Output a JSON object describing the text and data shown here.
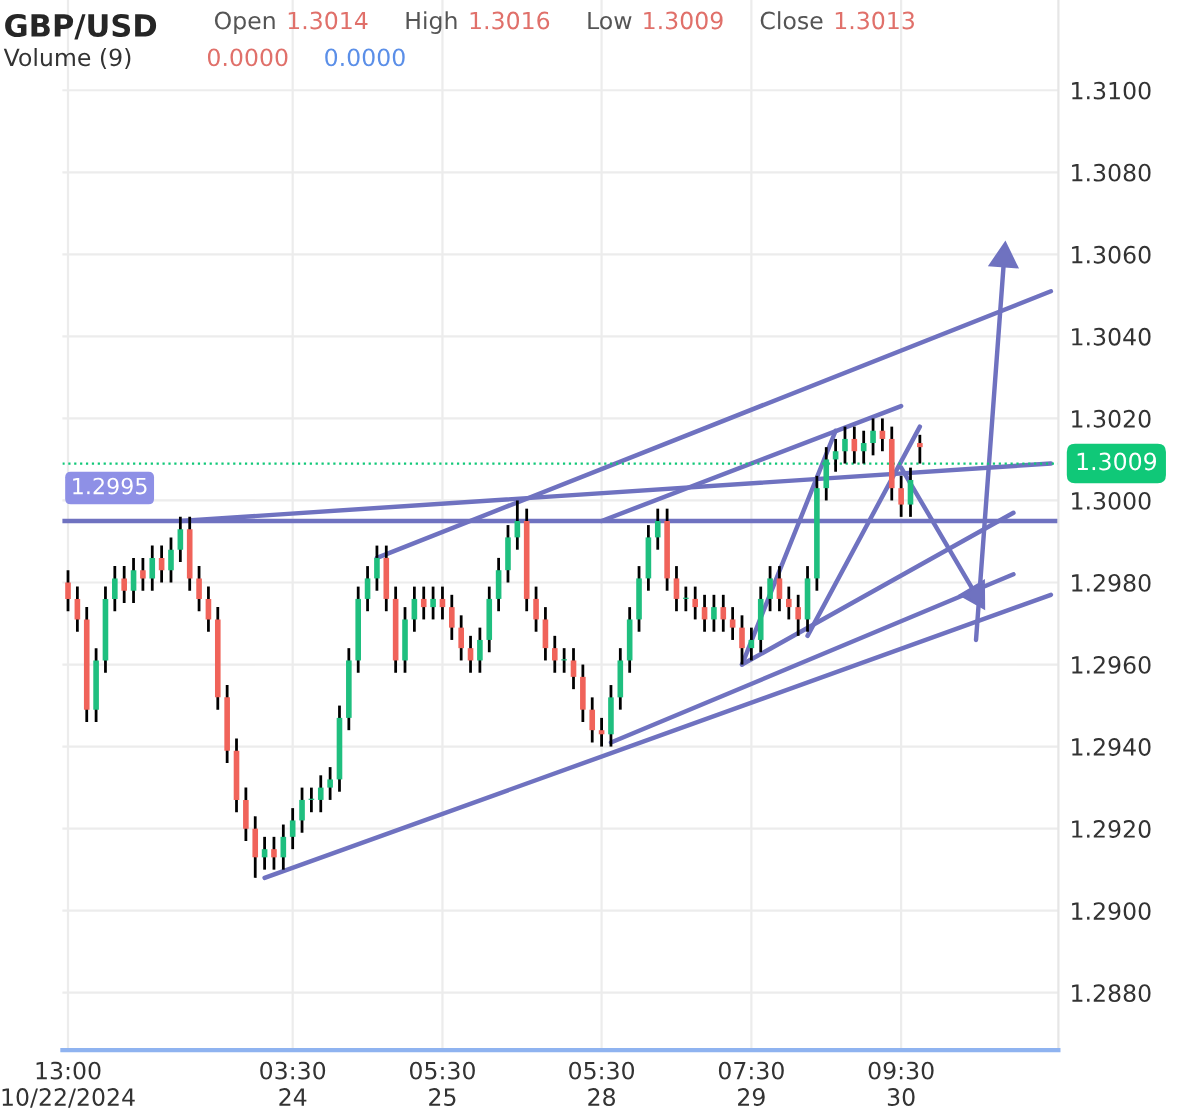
{
  "chart_data": {
    "type": "candlestick",
    "title": "GBP/USD",
    "annotations": [
      "Open",
      "1.3014",
      "High",
      "1.3016",
      "Low",
      "1.3009",
      "Close",
      "1.3013",
      "Volume (9)",
      "0.0000",
      "0.0000"
    ],
    "categories": [
      "13:00\n10/22/2024",
      null,
      null,
      null,
      null,
      null,
      null,
      null,
      null,
      null,
      null,
      null,
      null,
      null,
      null,
      null,
      null,
      null,
      null,
      null,
      null,
      null,
      null,
      null,
      "03:30\n24",
      null,
      null,
      null,
      null,
      null,
      null,
      null,
      null,
      null,
      null,
      null,
      null,
      null,
      null,
      null,
      "05:30\n25",
      null,
      null,
      null,
      null,
      null,
      null,
      null,
      null,
      null,
      null,
      null,
      null,
      null,
      null,
      null,
      null,
      "05:30\n28",
      null,
      null,
      null,
      null,
      null,
      null,
      null,
      null,
      null,
      null,
      null,
      null,
      null,
      null,
      null,
      "07:30\n29",
      null,
      null,
      null,
      null,
      null,
      null,
      null,
      null,
      null,
      null,
      null,
      null,
      null,
      null,
      null,
      "09:30\n30",
      null,
      null,
      null,
      null,
      null,
      null,
      null,
      null,
      null,
      null,
      null,
      null,
      null,
      null,
      null,
      null
    ],
    "ohlc": [
      [
        1.298,
        1.2983,
        1.2973,
        1.2976
      ],
      [
        1.2976,
        1.2979,
        1.2968,
        1.2971
      ],
      [
        1.2971,
        1.2974,
        1.2946,
        1.2949
      ],
      [
        1.2949,
        1.2964,
        1.2946,
        1.2961
      ],
      [
        1.2961,
        1.2979,
        1.2958,
        1.2976
      ],
      [
        1.2976,
        1.2984,
        1.2973,
        1.2981
      ],
      [
        1.2981,
        1.2984,
        1.2975,
        1.2978
      ],
      [
        1.2978,
        1.2986,
        1.2975,
        1.2983
      ],
      [
        1.2983,
        1.2986,
        1.2978,
        1.2981
      ],
      [
        1.2981,
        1.2989,
        1.2978,
        1.2986
      ],
      [
        1.2986,
        1.2989,
        1.298,
        1.2983
      ],
      [
        1.2983,
        1.2991,
        1.298,
        1.2988
      ],
      [
        1.2988,
        1.2996,
        1.2985,
        1.2993
      ],
      [
        1.2993,
        1.2996,
        1.2978,
        1.2981
      ],
      [
        1.2981,
        1.2984,
        1.2973,
        1.2976
      ],
      [
        1.2976,
        1.2979,
        1.2968,
        1.2971
      ],
      [
        1.2971,
        1.2974,
        1.2949,
        1.2952
      ],
      [
        1.2952,
        1.2955,
        1.2936,
        1.2939
      ],
      [
        1.2939,
        1.2942,
        1.2924,
        1.2927
      ],
      [
        1.2927,
        1.293,
        1.2917,
        1.292
      ],
      [
        1.292,
        1.2923,
        1.2908,
        1.2913
      ],
      [
        1.2913,
        1.2918,
        1.291,
        1.2915
      ],
      [
        1.2915,
        1.2918,
        1.291,
        1.2913
      ],
      [
        1.2913,
        1.2921,
        1.291,
        1.2918
      ],
      [
        1.2918,
        1.2925,
        1.2915,
        1.2922
      ],
      [
        1.2922,
        1.293,
        1.2919,
        1.2927
      ],
      [
        1.2927,
        1.293,
        1.2924,
        1.2927
      ],
      [
        1.2927,
        1.2933,
        1.2924,
        1.293
      ],
      [
        1.293,
        1.2935,
        1.2927,
        1.2932
      ],
      [
        1.2932,
        1.295,
        1.2929,
        1.2947
      ],
      [
        1.2947,
        1.2964,
        1.2944,
        1.2961
      ],
      [
        1.2961,
        1.2979,
        1.2958,
        1.2976
      ],
      [
        1.2976,
        1.2984,
        1.2973,
        1.2981
      ],
      [
        1.2981,
        1.2989,
        1.2978,
        1.2986
      ],
      [
        1.2986,
        1.2989,
        1.2973,
        1.2976
      ],
      [
        1.2976,
        1.2979,
        1.2958,
        1.2961
      ],
      [
        1.2961,
        1.2974,
        1.2958,
        1.2971
      ],
      [
        1.2971,
        1.2979,
        1.2968,
        1.2976
      ],
      [
        1.2976,
        1.2979,
        1.2971,
        1.2974
      ],
      [
        1.2974,
        1.2979,
        1.2971,
        1.2976
      ],
      [
        1.2976,
        1.2979,
        1.2971,
        1.2974
      ],
      [
        1.2974,
        1.2977,
        1.2966,
        1.2969
      ],
      [
        1.2969,
        1.2972,
        1.2961,
        1.2964
      ],
      [
        1.2964,
        1.2967,
        1.2958,
        1.2961
      ],
      [
        1.2961,
        1.2969,
        1.2958,
        1.2966
      ],
      [
        1.2966,
        1.2979,
        1.2963,
        1.2976
      ],
      [
        1.2976,
        1.2986,
        1.2973,
        1.2983
      ],
      [
        1.2983,
        1.2994,
        1.298,
        1.2991
      ],
      [
        1.2991,
        1.3,
        1.2988,
        1.2995
      ],
      [
        1.2995,
        1.2998,
        1.2973,
        1.2976
      ],
      [
        1.2976,
        1.2979,
        1.2968,
        1.2971
      ],
      [
        1.2971,
        1.2974,
        1.2961,
        1.2964
      ],
      [
        1.2964,
        1.2967,
        1.2958,
        1.2961
      ],
      [
        1.2961,
        1.2964,
        1.2958,
        1.2961
      ],
      [
        1.2961,
        1.2964,
        1.2954,
        1.2957
      ],
      [
        1.2957,
        1.296,
        1.2946,
        1.2949
      ],
      [
        1.2949,
        1.2952,
        1.2941,
        1.2944
      ],
      [
        1.2944,
        1.2947,
        1.294,
        1.2943
      ],
      [
        1.2943,
        1.2955,
        1.294,
        1.2952
      ],
      [
        1.2952,
        1.2964,
        1.2949,
        1.2961
      ],
      [
        1.2961,
        1.2974,
        1.2958,
        1.2971
      ],
      [
        1.2971,
        1.2984,
        1.2968,
        1.2981
      ],
      [
        1.2981,
        1.2994,
        1.2978,
        1.2991
      ],
      [
        1.2991,
        1.2998,
        1.2988,
        1.2995
      ],
      [
        1.2995,
        1.2998,
        1.2978,
        1.2981
      ],
      [
        1.2981,
        1.2984,
        1.2973,
        1.2976
      ],
      [
        1.2976,
        1.2979,
        1.2973,
        1.2976
      ],
      [
        1.2976,
        1.2979,
        1.2971,
        1.2974
      ],
      [
        1.2974,
        1.2977,
        1.2968,
        1.2971
      ],
      [
        1.2971,
        1.2977,
        1.2968,
        1.2974
      ],
      [
        1.2974,
        1.2977,
        1.2968,
        1.2971
      ],
      [
        1.2971,
        1.2974,
        1.2966,
        1.2969
      ],
      [
        1.2969,
        1.2972,
        1.296,
        1.2964
      ],
      [
        1.2964,
        1.2969,
        1.2961,
        1.2966
      ],
      [
        1.2966,
        1.2979,
        1.2963,
        1.2976
      ],
      [
        1.2976,
        1.2984,
        1.2973,
        1.2981
      ],
      [
        1.2981,
        1.2984,
        1.2973,
        1.2976
      ],
      [
        1.2976,
        1.2979,
        1.2971,
        1.2974
      ],
      [
        1.2974,
        1.2977,
        1.2967,
        1.2971
      ],
      [
        1.2971,
        1.2984,
        1.2968,
        1.2981
      ],
      [
        1.2981,
        1.3006,
        1.2978,
        1.3003
      ],
      [
        1.3003,
        1.3013,
        1.3,
        1.301
      ],
      [
        1.301,
        1.3015,
        1.3007,
        1.3012
      ],
      [
        1.3012,
        1.3018,
        1.3009,
        1.3015
      ],
      [
        1.3015,
        1.3018,
        1.3009,
        1.3012
      ],
      [
        1.3012,
        1.3017,
        1.3009,
        1.3014
      ],
      [
        1.3014,
        1.302,
        1.3011,
        1.3017
      ],
      [
        1.3017,
        1.302,
        1.3012,
        1.3015
      ],
      [
        1.3015,
        1.3018,
        1.3,
        1.3003
      ],
      [
        1.3003,
        1.3006,
        1.2996,
        1.2999
      ],
      [
        1.2999,
        1.3008,
        1.2996,
        1.3005
      ],
      [
        1.3014,
        1.3016,
        1.3009,
        1.3013
      ],
      null,
      null,
      null,
      null,
      null,
      null,
      null,
      null,
      null,
      null,
      null,
      null,
      null,
      null
    ],
    "series": [
      {
        "type": "line",
        "color": "#6f72c0",
        "values": [
          null,
          null,
          null,
          null,
          null,
          null,
          null,
          null,
          null,
          null,
          null,
          null,
          null,
          null,
          null,
          null,
          null,
          null,
          null,
          null,
          null,
          1.2908,
          null,
          null,
          null,
          null,
          null,
          null,
          null,
          null,
          null,
          null,
          null,
          null,
          null,
          null,
          null,
          null,
          null,
          null,
          null,
          null,
          null,
          null,
          null,
          null,
          null,
          null,
          null,
          null,
          null,
          null,
          null,
          null,
          null,
          null,
          null,
          null,
          null,
          null,
          null,
          null,
          null,
          null,
          null,
          null,
          null,
          null,
          null,
          null,
          null,
          null,
          null,
          null,
          null,
          null,
          null,
          null,
          null,
          null,
          null,
          null,
          null,
          null,
          null,
          null,
          null,
          null,
          null,
          null,
          null,
          null,
          null,
          null,
          null,
          null,
          null,
          null,
          null,
          null,
          null,
          null,
          null,
          null,
          null,
          1.2977
        ]
      },
      {
        "type": "line",
        "color": "#6f72c0",
        "values": [
          null,
          null,
          null,
          null,
          null,
          null,
          null,
          null,
          null,
          null,
          null,
          null,
          null,
          null,
          null,
          null,
          null,
          null,
          null,
          null,
          null,
          null,
          null,
          null,
          null,
          null,
          null,
          null,
          null,
          null,
          null,
          null,
          null,
          null,
          null,
          null,
          null,
          null,
          null,
          null,
          null,
          null,
          null,
          null,
          null,
          null,
          null,
          null,
          null,
          null,
          null,
          null,
          null,
          null,
          null,
          null,
          null,
          null,
          1.2941,
          null,
          null,
          null,
          null,
          null,
          null,
          null,
          null,
          null,
          null,
          null,
          null,
          null,
          null,
          null,
          null,
          null,
          null,
          null,
          null,
          null,
          null,
          null,
          null,
          null,
          null,
          null,
          null,
          null,
          null,
          null,
          null,
          null,
          null,
          null,
          null,
          null,
          null,
          null,
          null,
          null,
          null,
          1.2982,
          null,
          null,
          null,
          null
        ]
      },
      {
        "type": "line",
        "color": "#6f72c0",
        "values": [
          null,
          null,
          null,
          null,
          null,
          null,
          null,
          null,
          null,
          null,
          null,
          null,
          null,
          null,
          null,
          null,
          null,
          null,
          null,
          null,
          null,
          null,
          null,
          null,
          null,
          null,
          null,
          null,
          null,
          null,
          null,
          null,
          null,
          null,
          null,
          null,
          null,
          null,
          null,
          null,
          null,
          null,
          null,
          null,
          null,
          null,
          null,
          null,
          null,
          null,
          null,
          null,
          null,
          null,
          null,
          null,
          null,
          null,
          null,
          null,
          null,
          null,
          null,
          null,
          null,
          null,
          null,
          null,
          null,
          null,
          null,
          null,
          1.296,
          null,
          null,
          null,
          null,
          null,
          null,
          null,
          null,
          null,
          null,
          null,
          null,
          null,
          null,
          null,
          null,
          null,
          null,
          null,
          null,
          null,
          null,
          null,
          null,
          null,
          null,
          null,
          null,
          1.2997,
          null,
          null,
          null,
          null
        ]
      },
      {
        "type": "line",
        "color": "#6f72c0",
        "values": [
          null,
          null,
          null,
          null,
          null,
          null,
          null,
          null,
          null,
          null,
          null,
          null,
          1.2995,
          null,
          null,
          null,
          null,
          null,
          null,
          null,
          null,
          null,
          null,
          null,
          null,
          null,
          null,
          null,
          null,
          null,
          null,
          null,
          null,
          null,
          null,
          null,
          null,
          null,
          null,
          null,
          null,
          null,
          null,
          null,
          null,
          null,
          null,
          null,
          null,
          null,
          null,
          null,
          null,
          null,
          null,
          null,
          null,
          null,
          null,
          null,
          null,
          null,
          null,
          null,
          null,
          null,
          null,
          null,
          null,
          null,
          null,
          null,
          null,
          null,
          null,
          null,
          null,
          null,
          null,
          null,
          null,
          null,
          null,
          null,
          null,
          null,
          null,
          null,
          null,
          null,
          null,
          null,
          null,
          null,
          null,
          null,
          null,
          null,
          null,
          null,
          null,
          null,
          null,
          null,
          null,
          1.3009
        ]
      },
      {
        "type": "line",
        "color": "#6f72c0",
        "values": [
          null,
          null,
          null,
          null,
          null,
          null,
          null,
          null,
          null,
          null,
          null,
          null,
          null,
          null,
          null,
          null,
          null,
          null,
          null,
          null,
          null,
          null,
          null,
          null,
          null,
          null,
          null,
          null,
          null,
          null,
          null,
          null,
          null,
          1.2986,
          null,
          null,
          null,
          null,
          null,
          null,
          null,
          null,
          null,
          null,
          null,
          null,
          null,
          null,
          null,
          null,
          null,
          null,
          null,
          null,
          null,
          null,
          null,
          null,
          null,
          null,
          null,
          null,
          null,
          null,
          null,
          null,
          null,
          null,
          null,
          null,
          null,
          null,
          null,
          null,
          null,
          null,
          null,
          null,
          null,
          null,
          null,
          null,
          null,
          null,
          null,
          null,
          null,
          null,
          null,
          null,
          null,
          null,
          null,
          null,
          null,
          null,
          null,
          null,
          null,
          null,
          null,
          null,
          null,
          null,
          null,
          1.3051
        ]
      },
      {
        "type": "line",
        "color": "#6f72c0",
        "values": [
          null,
          null,
          null,
          null,
          null,
          null,
          null,
          null,
          null,
          null,
          null,
          null,
          null,
          null,
          null,
          null,
          null,
          null,
          null,
          null,
          null,
          null,
          null,
          null,
          null,
          null,
          null,
          null,
          null,
          null,
          null,
          null,
          null,
          null,
          null,
          null,
          null,
          null,
          null,
          null,
          null,
          null,
          null,
          null,
          null,
          null,
          null,
          null,
          null,
          null,
          null,
          null,
          null,
          null,
          null,
          null,
          null,
          1.2995,
          null,
          null,
          null,
          null,
          null,
          null,
          null,
          null,
          null,
          null,
          null,
          null,
          null,
          null,
          null,
          null,
          null,
          null,
          null,
          null,
          null,
          null,
          null,
          null,
          null,
          null,
          null,
          null,
          null,
          null,
          null,
          1.3023,
          null,
          null,
          null,
          null,
          null,
          null,
          null,
          null,
          null,
          null,
          null,
          null,
          null,
          null,
          null,
          null
        ]
      },
      {
        "type": "line",
        "color": "#6f72c0",
        "values": [
          null,
          null,
          null,
          null,
          null,
          null,
          null,
          null,
          null,
          null,
          null,
          null,
          null,
          null,
          null,
          null,
          null,
          null,
          null,
          null,
          null,
          null,
          null,
          null,
          null,
          null,
          null,
          null,
          null,
          null,
          null,
          null,
          null,
          null,
          null,
          null,
          null,
          null,
          null,
          null,
          null,
          null,
          null,
          null,
          null,
          null,
          null,
          null,
          null,
          null,
          null,
          null,
          null,
          null,
          null,
          null,
          null,
          null,
          null,
          null,
          null,
          null,
          null,
          null,
          null,
          null,
          null,
          null,
          null,
          null,
          null,
          null,
          1.296,
          null,
          null,
          null,
          null,
          null,
          null,
          null,
          null,
          null,
          1.3017,
          null,
          null,
          null,
          null,
          null,
          null,
          null,
          null,
          null,
          null,
          null,
          null,
          null,
          null,
          null,
          null,
          null,
          null,
          null,
          null,
          null,
          null,
          null
        ]
      },
      {
        "type": "line",
        "color": "#6f72c0",
        "values": [
          null,
          null,
          null,
          null,
          null,
          null,
          null,
          null,
          null,
          null,
          null,
          null,
          null,
          null,
          null,
          null,
          null,
          null,
          null,
          null,
          null,
          null,
          null,
          null,
          null,
          null,
          null,
          null,
          null,
          null,
          null,
          null,
          null,
          null,
          null,
          null,
          null,
          null,
          null,
          null,
          null,
          null,
          null,
          null,
          null,
          null,
          null,
          null,
          null,
          null,
          null,
          null,
          null,
          null,
          null,
          null,
          null,
          null,
          null,
          null,
          null,
          null,
          null,
          null,
          null,
          null,
          null,
          null,
          null,
          null,
          null,
          null,
          null,
          null,
          null,
          null,
          null,
          null,
          null,
          1.2967,
          null,
          null,
          null,
          null,
          null,
          null,
          null,
          null,
          null,
          null,
          null,
          1.3018,
          null,
          null,
          null,
          null,
          null,
          null,
          null,
          null,
          null,
          null,
          null,
          null,
          null,
          null
        ]
      },
      {
        "type": "line",
        "color": "#6f72c0",
        "marker": "triangle",
        "values": [
          null,
          null,
          null,
          null,
          null,
          null,
          null,
          null,
          null,
          null,
          null,
          null,
          null,
          null,
          null,
          null,
          null,
          null,
          null,
          null,
          null,
          null,
          null,
          null,
          null,
          null,
          null,
          null,
          null,
          null,
          null,
          null,
          null,
          null,
          null,
          null,
          null,
          null,
          null,
          null,
          null,
          null,
          null,
          null,
          null,
          null,
          null,
          null,
          null,
          null,
          null,
          null,
          null,
          null,
          null,
          null,
          null,
          null,
          null,
          null,
          null,
          null,
          null,
          null,
          null,
          null,
          null,
          null,
          null,
          null,
          null,
          null,
          null,
          null,
          null,
          null,
          null,
          null,
          null,
          null,
          null,
          null,
          null,
          null,
          null,
          null,
          null,
          null,
          null,
          1.3008,
          null,
          null,
          null,
          null,
          null,
          null,
          null,
          1.2977,
          null,
          null,
          null,
          null,
          null,
          null,
          null,
          null
        ]
      },
      {
        "type": "line",
        "color": "#6f72c0",
        "marker": "triangle",
        "values": [
          null,
          null,
          null,
          null,
          null,
          null,
          null,
          null,
          null,
          null,
          null,
          null,
          null,
          null,
          null,
          null,
          null,
          null,
          null,
          null,
          null,
          null,
          null,
          null,
          null,
          null,
          null,
          null,
          null,
          null,
          null,
          null,
          null,
          null,
          null,
          null,
          null,
          null,
          null,
          null,
          null,
          null,
          null,
          null,
          null,
          null,
          null,
          null,
          null,
          null,
          null,
          null,
          null,
          null,
          null,
          null,
          null,
          null,
          null,
          null,
          null,
          null,
          null,
          null,
          null,
          null,
          null,
          null,
          null,
          null,
          null,
          null,
          null,
          null,
          null,
          null,
          null,
          null,
          null,
          null,
          null,
          null,
          null,
          null,
          null,
          null,
          null,
          null,
          null,
          null,
          null,
          null,
          null,
          null,
          null,
          null,
          null,
          1.2966,
          null,
          null,
          1.3059,
          null,
          null,
          null,
          null,
          null
        ]
      }
    ],
    "ref_lines": [
      {
        "axis": "y",
        "value": 1.2995,
        "label": "1.2995",
        "color": "#6f72c0",
        "line_style": "solid"
      },
      {
        "axis": "y",
        "value": 1.3009,
        "label": "1.3009",
        "color": "#10c878",
        "line_style": "dotted"
      }
    ],
    "ylim": [
      1.2866,
      1.3122
    ],
    "yticks": [
      {
        "value": 1.288,
        "label": "1.2880"
      },
      {
        "value": 1.29,
        "label": "1.2900"
      },
      {
        "value": 1.292,
        "label": "1.2920"
      },
      {
        "value": 1.294,
        "label": "1.2940"
      },
      {
        "value": 1.296,
        "label": "1.2960"
      },
      {
        "value": 1.298,
        "label": "1.2980"
      },
      {
        "value": 1.3,
        "label": "1.3000"
      },
      {
        "value": 1.302,
        "label": "1.3020"
      },
      {
        "value": 1.304,
        "label": "1.3040"
      },
      {
        "value": 1.306,
        "label": "1.3060"
      },
      {
        "value": 1.308,
        "label": "1.3080"
      },
      {
        "value": 1.31,
        "label": "1.3100"
      }
    ],
    "grid": true
  }
}
